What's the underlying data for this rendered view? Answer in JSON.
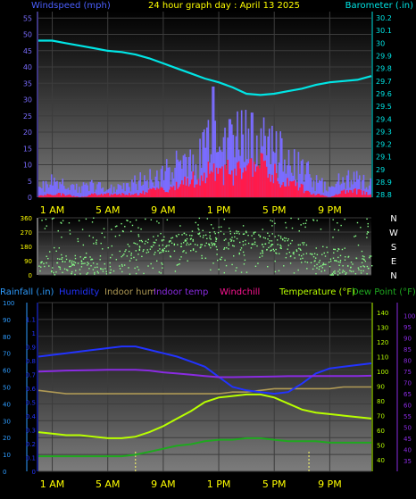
{
  "header": {
    "left": "Windspeed (mph)",
    "center": "24 hour graph day : April 13 2025",
    "right": "Barometer (.in)"
  },
  "colors": {
    "windspeed_label": "#4a5fff",
    "title": "#ffff00",
    "barometer": "#00e5e5",
    "wind_bars": "#7a6cff",
    "wind_avg": "#ff1a4a",
    "direction": "#88ff88",
    "rainfall": "#2e9cff",
    "humidity": "#2233ff",
    "indoor_hum": "#b09a55",
    "indoor_temp": "#8a2be2",
    "windchill": "#ff1493",
    "temperature": "#b8ff00",
    "dew_point": "#1fa81f",
    "axis": "#dddd00",
    "grid": "#3c3c3c"
  },
  "chart_data": [
    {
      "type": "line",
      "title": "24 hour graph day : April 13 2025",
      "ylabel": "Windspeed (mph)",
      "y2label": "Barometer (.in)",
      "ylim": [
        0,
        57
      ],
      "y2lim": [
        28.78,
        30.25
      ],
      "yticks": [
        0,
        5,
        10,
        15,
        20,
        25,
        30,
        35,
        40,
        45,
        50,
        55
      ],
      "y2ticks": [
        28.8,
        28.9,
        29,
        29.1,
        29.2,
        29.3,
        29.4,
        29.5,
        29.6,
        29.7,
        29.8,
        29.9,
        30,
        30.1,
        30.2
      ],
      "x_tick_labels": [
        "1 AM",
        "5 AM",
        "9 AM",
        "1 PM",
        "5 PM",
        "9 PM"
      ],
      "x_hours": [
        1,
        5,
        9,
        13,
        17,
        21
      ],
      "xlim_hours": [
        0,
        24
      ],
      "grid": true,
      "series": [
        {
          "name": "Barometer (.in)",
          "axis": "right",
          "x": [
            0,
            1,
            2,
            3,
            4,
            5,
            6,
            7,
            8,
            9,
            10,
            11,
            12,
            13,
            14,
            15,
            16,
            17,
            18,
            19,
            20,
            21,
            22,
            23,
            24
          ],
          "values": [
            30.02,
            30.02,
            30.0,
            29.98,
            29.96,
            29.94,
            29.93,
            29.91,
            29.88,
            29.84,
            29.8,
            29.76,
            29.72,
            29.69,
            29.65,
            29.6,
            29.59,
            29.6,
            29.62,
            29.64,
            29.67,
            29.69,
            29.7,
            29.71,
            29.74
          ]
        },
        {
          "name": "Gust (mph)",
          "axis": "left",
          "x": [
            0,
            1,
            2,
            3,
            4,
            5,
            6,
            7,
            8,
            9,
            10,
            11,
            12,
            13,
            14,
            15,
            16,
            17,
            18,
            19,
            20,
            21,
            22,
            23,
            24
          ],
          "values": [
            4,
            5,
            4,
            3,
            4,
            3,
            4,
            5,
            6,
            8,
            10,
            12,
            17,
            22,
            18,
            20,
            22,
            17,
            12,
            10,
            5,
            3,
            7,
            6,
            4
          ]
        },
        {
          "name": "Average (mph)",
          "axis": "left",
          "x": [
            0,
            1,
            2,
            3,
            4,
            5,
            6,
            7,
            8,
            9,
            10,
            11,
            12,
            13,
            14,
            15,
            16,
            17,
            18,
            19,
            20,
            21,
            22,
            23,
            24
          ],
          "values": [
            1,
            1,
            1,
            0,
            1,
            1,
            1,
            1,
            2,
            3,
            4,
            6,
            8,
            10,
            8,
            9,
            10,
            8,
            5,
            3,
            1,
            0,
            2,
            2,
            1
          ]
        }
      ],
      "peaks_mph": [
        {
          "hour": 12.6,
          "value": 34
        },
        {
          "hour": 15.4,
          "value": 26
        },
        {
          "hour": 13.8,
          "value": 24
        }
      ]
    },
    {
      "type": "scatter",
      "ylabel": "Wind direction (degrees)",
      "yticks": [
        0,
        90,
        180,
        270,
        360
      ],
      "ylim": [
        0,
        360
      ],
      "compass_labels": [
        "N",
        "W",
        "S",
        "E",
        "N"
      ],
      "xlim_hours": [
        0,
        24
      ],
      "note": "direction samples scattered across the range; mostly westerly to southerly",
      "series": [
        {
          "name": "Wind direction",
          "x": [
            1,
            3,
            5,
            7,
            9,
            11,
            13,
            15,
            17,
            19,
            21,
            23
          ],
          "values": [
            70,
            60,
            55,
            150,
            200,
            210,
            220,
            230,
            200,
            150,
            50,
            60
          ]
        }
      ]
    },
    {
      "type": "line",
      "ylabels": [
        "Rainfall (.in)",
        "Humidity",
        "Indoor hum",
        "Indoor temp",
        "Windchill",
        "Temperature (°F)",
        "Dew Point (°F)"
      ],
      "left_outer_ticks": [
        0,
        10,
        20,
        30,
        40,
        50,
        60,
        70,
        80,
        90,
        100
      ],
      "left_inner_ticks": [
        0,
        0.1,
        0.2,
        0.3,
        0.4,
        0.5,
        0.6,
        0.7,
        0.8,
        0.9,
        1,
        1.1
      ],
      "right_inner_ticks": [
        40,
        50,
        60,
        70,
        80,
        90,
        100,
        110,
        120,
        130,
        140
      ],
      "right_outer_ticks": [
        35,
        40,
        45,
        50,
        55,
        60,
        65,
        70,
        75,
        80,
        85,
        90,
        95,
        100
      ],
      "x_tick_labels": [
        "1 AM",
        "5 AM",
        "9 AM",
        "1 PM",
        "5 PM",
        "9 PM"
      ],
      "x_hours": [
        1,
        5,
        9,
        13,
        17,
        21
      ],
      "xlim_hours": [
        0,
        24
      ],
      "grid": true,
      "series": [
        {
          "name": "Humidity",
          "axis": "humidity_pct",
          "x": [
            0,
            1,
            2,
            3,
            4,
            5,
            6,
            7,
            8,
            9,
            10,
            11,
            12,
            13,
            14,
            15,
            16,
            17,
            18,
            19,
            20,
            21,
            22,
            23,
            24
          ],
          "values": [
            68,
            69,
            70,
            71,
            72,
            73,
            74,
            74,
            72,
            70,
            68,
            65,
            62,
            56,
            50,
            48,
            47,
            46,
            47,
            52,
            58,
            61,
            62,
            63,
            64
          ]
        },
        {
          "name": "Indoor hum",
          "axis": "humidity_pct",
          "x": [
            0,
            1,
            2,
            3,
            4,
            5,
            6,
            7,
            8,
            9,
            10,
            11,
            12,
            13,
            14,
            15,
            16,
            17,
            18,
            19,
            20,
            21,
            22,
            23,
            24
          ],
          "values": [
            48,
            47,
            46,
            46,
            46,
            46,
            46,
            46,
            46,
            46,
            46,
            46,
            46,
            46,
            47,
            47,
            48,
            49,
            49,
            49,
            49,
            49,
            50,
            50,
            50
          ]
        },
        {
          "name": "Indoor temp",
          "axis": "indoor_temp_f",
          "x": [
            0,
            1,
            2,
            3,
            4,
            5,
            6,
            7,
            8,
            9,
            10,
            11,
            12,
            13,
            14,
            15,
            16,
            17,
            18,
            19,
            20,
            21,
            22,
            23,
            24
          ],
          "values": [
            73.8,
            74,
            74.2,
            74.3,
            74.4,
            74.5,
            74.5,
            74.5,
            74.2,
            73.5,
            73,
            72.5,
            72,
            71.5,
            71.5,
            71.6,
            71.7,
            71.8,
            71.9,
            71.9,
            72,
            72,
            72,
            72,
            72.1
          ]
        },
        {
          "name": "Temperature (°F)",
          "axis": "temperature_f",
          "x": [
            0,
            1,
            2,
            3,
            4,
            5,
            6,
            7,
            8,
            9,
            10,
            11,
            12,
            13,
            14,
            15,
            16,
            17,
            18,
            19,
            20,
            21,
            22,
            23,
            24
          ],
          "values": [
            61,
            60,
            59,
            59,
            58,
            57,
            57,
            58,
            61,
            65,
            70,
            75,
            81,
            84,
            85,
            86,
            86,
            84,
            80,
            76,
            74,
            73,
            72,
            71,
            70
          ]
        },
        {
          "name": "Dew Point (°F)",
          "axis": "temperature_f",
          "x": [
            0,
            1,
            2,
            3,
            4,
            5,
            6,
            7,
            8,
            9,
            10,
            11,
            12,
            13,
            14,
            15,
            16,
            17,
            18,
            19,
            20,
            21,
            22,
            23,
            24
          ],
          "values": [
            45,
            45,
            45,
            45,
            45,
            45,
            45,
            46,
            48,
            50,
            52,
            53,
            55,
            56,
            56,
            57,
            57,
            56,
            55,
            55,
            55,
            54,
            54,
            54,
            54
          ]
        }
      ],
      "rain_marker_hours": [
        7,
        19.5
      ]
    }
  ]
}
